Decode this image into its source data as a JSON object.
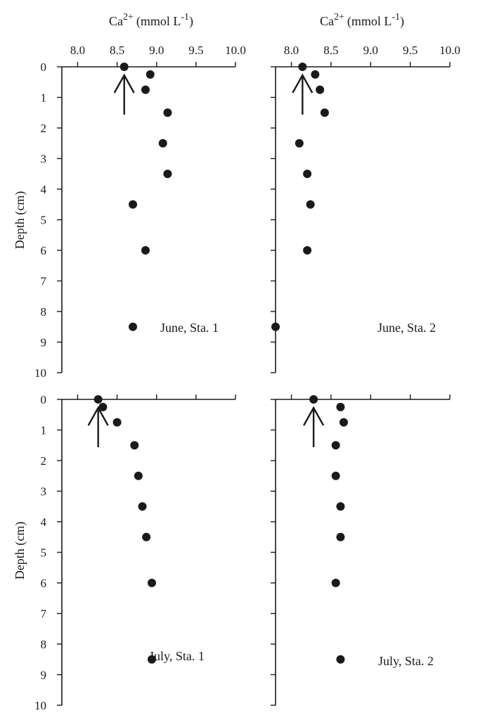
{
  "colors": {
    "ink": "#1a1a1a",
    "background": "#ffffff"
  },
  "top_axis_title": {
    "base": "Ca",
    "sup": "2+",
    "unit": "(mmol L",
    "unit_sup": "-1",
    "close": ")"
  },
  "y_axis_title": "Depth (cm)",
  "chart_data": [
    {
      "type": "scatter",
      "panel": "June, Sta. 1",
      "xlabel": "Ca2+ (mmol L-1)",
      "ylabel": "Depth (cm)",
      "xlim": [
        7.8,
        10.0
      ],
      "ylim": [
        0,
        10
      ],
      "y_reversed": true,
      "x_ticks": [
        "8.0",
        "8.5",
        "9.0",
        "9.5",
        "10.0"
      ],
      "y_ticks": [
        "0",
        "1",
        "2",
        "3",
        "4",
        "5",
        "6",
        "7",
        "8",
        "9",
        "10"
      ],
      "points": [
        [
          8.59,
          0.0
        ],
        [
          8.92,
          0.25
        ],
        [
          8.86,
          0.75
        ],
        [
          9.14,
          1.5
        ],
        [
          9.08,
          2.5
        ],
        [
          9.14,
          3.5
        ],
        [
          8.7,
          4.5
        ],
        [
          8.86,
          6.0
        ],
        [
          8.7,
          8.5
        ]
      ],
      "arrow_x": 8.59
    },
    {
      "type": "scatter",
      "panel": "June, Sta. 2",
      "xlabel": "Ca2+ (mmol L-1)",
      "ylabel": "Depth (cm)",
      "xlim": [
        7.8,
        10.0
      ],
      "ylim": [
        0,
        10
      ],
      "y_reversed": true,
      "x_ticks": [
        "8.0",
        "8.5",
        "9.0",
        "9.5",
        "10.0"
      ],
      "y_ticks": [
        "0",
        "1",
        "2",
        "3",
        "4",
        "5",
        "6",
        "7",
        "8",
        "9",
        "10"
      ],
      "points": [
        [
          8.14,
          0.0
        ],
        [
          8.3,
          0.25
        ],
        [
          8.36,
          0.75
        ],
        [
          8.42,
          1.5
        ],
        [
          8.1,
          2.5
        ],
        [
          8.2,
          3.5
        ],
        [
          8.24,
          4.5
        ],
        [
          8.2,
          6.0
        ],
        [
          7.8,
          8.5
        ]
      ],
      "arrow_x": 8.14
    },
    {
      "type": "scatter",
      "panel": "July, Sta. 1",
      "xlabel": "Ca2+ (mmol L-1)",
      "ylabel": "Depth (cm)",
      "xlim": [
        7.8,
        10.0
      ],
      "ylim": [
        0,
        10
      ],
      "y_reversed": true,
      "x_ticks": [
        "8.0",
        "8.5",
        "9.0",
        "9.5",
        "10.0"
      ],
      "y_ticks": [
        "0",
        "1",
        "2",
        "3",
        "4",
        "5",
        "6",
        "7",
        "8",
        "9",
        "10"
      ],
      "points": [
        [
          8.26,
          0.0
        ],
        [
          8.32,
          0.25
        ],
        [
          8.5,
          0.75
        ],
        [
          8.72,
          1.5
        ],
        [
          8.77,
          2.5
        ],
        [
          8.82,
          3.5
        ],
        [
          8.87,
          4.5
        ],
        [
          8.94,
          6.0
        ],
        [
          8.94,
          8.5
        ]
      ],
      "arrow_x": 8.26
    },
    {
      "type": "scatter",
      "panel": "July, Sta. 2",
      "xlabel": "Ca2+ (mmol L-1)",
      "ylabel": "Depth (cm)",
      "xlim": [
        7.8,
        10.0
      ],
      "ylim": [
        0,
        10
      ],
      "y_reversed": true,
      "x_ticks": [
        "8.0",
        "8.5",
        "9.0",
        "9.5",
        "10.0"
      ],
      "y_ticks": [
        "0",
        "1",
        "2",
        "3",
        "4",
        "5",
        "6",
        "7",
        "8",
        "9",
        "10"
      ],
      "points": [
        [
          8.28,
          0.0
        ],
        [
          8.62,
          0.25
        ],
        [
          8.66,
          0.75
        ],
        [
          8.56,
          1.5
        ],
        [
          8.56,
          2.5
        ],
        [
          8.62,
          3.5
        ],
        [
          8.62,
          4.5
        ],
        [
          8.56,
          6.0
        ],
        [
          8.62,
          8.5
        ]
      ],
      "arrow_x": 8.28
    }
  ]
}
